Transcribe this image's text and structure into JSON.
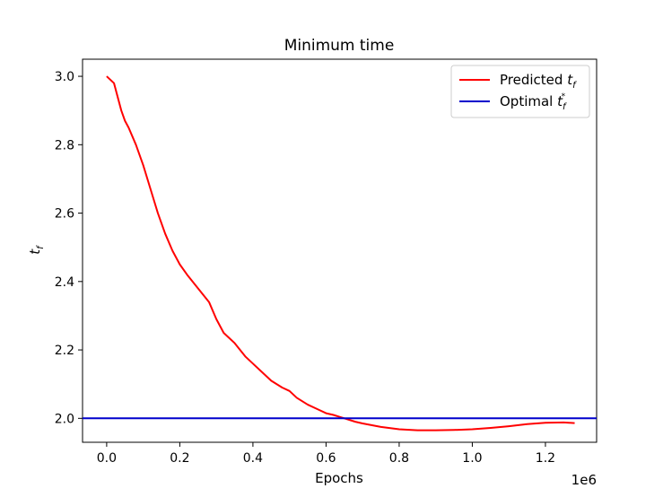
{
  "chart_data": {
    "type": "line",
    "title": "Minimum time",
    "xlabel": "Epochs",
    "ylabel_main": "t",
    "ylabel_sub": "f",
    "x_offset_label": "1e6",
    "xlim": [
      -0.066,
      1.34
    ],
    "ylim": [
      1.93,
      3.05
    ],
    "xticks": [
      0.0,
      0.2,
      0.4,
      0.6,
      0.8,
      1.0,
      1.2
    ],
    "xtick_labels": [
      "0.0",
      "0.2",
      "0.4",
      "0.6",
      "0.8",
      "1.0",
      "1.2"
    ],
    "yticks": [
      2.0,
      2.2,
      2.4,
      2.6,
      2.8,
      3.0
    ],
    "ytick_labels": [
      "2.0",
      "2.2",
      "2.4",
      "2.6",
      "2.8",
      "3.0"
    ],
    "grid": false,
    "legend_position": "top-right",
    "series": [
      {
        "name": "Predicted",
        "name_sub": "f",
        "color": "#ff0000",
        "x": [
          0.0,
          0.02,
          0.03,
          0.04,
          0.05,
          0.06,
          0.08,
          0.1,
          0.12,
          0.14,
          0.16,
          0.18,
          0.2,
          0.22,
          0.25,
          0.28,
          0.3,
          0.32,
          0.35,
          0.38,
          0.4,
          0.43,
          0.45,
          0.48,
          0.5,
          0.52,
          0.55,
          0.58,
          0.6,
          0.62,
          0.65,
          0.68,
          0.7,
          0.75,
          0.8,
          0.85,
          0.9,
          0.95,
          1.0,
          1.05,
          1.1,
          1.15,
          1.2,
          1.25,
          1.28
        ],
        "y": [
          3.0,
          2.98,
          2.94,
          2.9,
          2.87,
          2.85,
          2.8,
          2.74,
          2.67,
          2.6,
          2.54,
          2.49,
          2.45,
          2.42,
          2.38,
          2.34,
          2.29,
          2.25,
          2.22,
          2.18,
          2.16,
          2.13,
          2.11,
          2.09,
          2.08,
          2.06,
          2.04,
          2.025,
          2.015,
          2.01,
          2.0,
          1.99,
          1.985,
          1.975,
          1.968,
          1.965,
          1.965,
          1.966,
          1.968,
          1.972,
          1.977,
          1.983,
          1.987,
          1.988,
          1.986
        ]
      },
      {
        "name": "Optimal",
        "name_sub": "f",
        "name_sup": "*",
        "color": "#0000cc",
        "x": [
          -0.066,
          1.34
        ],
        "y": [
          2.0,
          2.0
        ]
      }
    ]
  }
}
